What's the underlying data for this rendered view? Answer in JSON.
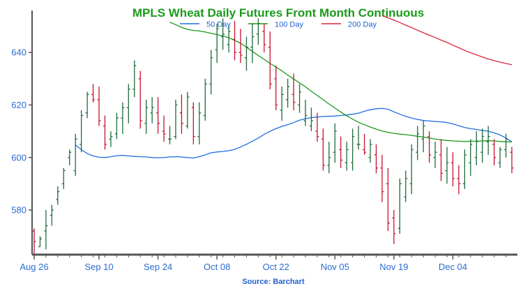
{
  "chart_data": {
    "type": "ohlc",
    "title": "MPLS Wheat Daily Futures Front Month Continuous",
    "source": "Source: Barchart",
    "xlabel": "",
    "ylabel": "",
    "ylim": [
      563,
      656
    ],
    "y_ticks": [
      580,
      600,
      620,
      640
    ],
    "x_ticks": [
      "Aug 26",
      "Sep 10",
      "Sep 24",
      "Oct 08",
      "Oct 22",
      "Nov 05",
      "Nov 19",
      "Dec 04"
    ],
    "x_tick_index": [
      0,
      11,
      21,
      31,
      41,
      51,
      61,
      71
    ],
    "grid": false,
    "legend": {
      "placement": "top-center"
    },
    "colors": {
      "title": "#1a9a1a",
      "axis": "#555555",
      "tick_text": "#2b6cd4",
      "up": "#1e6b3c",
      "down": "#c8102e",
      "ma50": "#1f6fe0",
      "ma100": "#1a9a1a",
      "ma200": "#d9253f",
      "source": "#1f5fd0"
    },
    "series": [
      {
        "name": "50 Day",
        "color": "#1f6fe0",
        "values": [
          604.8,
          603.0,
          601.5,
          600.6,
          600.1,
          600.0,
          600.3,
          600.7,
          600.8,
          600.6,
          600.4,
          600.3,
          600.2,
          600.0,
          599.9,
          600.0,
          600.2,
          600.3,
          600.2,
          600.0,
          599.8,
          600.3,
          601.0,
          601.8,
          602.1,
          602.3,
          602.6,
          603.1,
          604.0,
          605.0,
          606.2,
          607.4,
          608.8,
          610.0,
          611.0,
          611.8,
          612.5,
          613.3,
          614.2,
          614.8,
          615.2,
          615.4,
          615.6,
          615.7,
          615.8,
          616.0,
          616.2,
          616.5,
          616.9,
          617.6,
          618.2,
          618.6,
          618.7,
          618.4,
          617.4,
          616.5,
          615.7,
          615.0,
          614.5,
          614.1,
          613.9,
          613.7,
          613.6,
          613.3,
          612.8,
          612.1,
          611.4,
          611.0,
          610.7,
          610.3,
          610.0,
          609.4,
          608.6,
          607.4,
          606.0
        ]
      },
      {
        "name": "100 Day",
        "color": "#1a9a1a",
        "values": [
          651.5,
          650.6,
          649.6,
          648.8,
          648.4,
          648.2,
          647.8,
          647.3,
          646.8,
          646.3,
          645.6,
          644.6,
          643.5,
          642.0,
          640.4,
          638.8,
          637.4,
          635.8,
          634.5,
          633.0,
          631.4,
          629.9,
          628.4,
          626.9,
          625.2,
          623.6,
          622.0,
          620.4,
          618.8,
          617.3,
          615.9,
          614.6,
          613.4,
          612.5,
          611.6,
          610.8,
          610.1,
          609.6,
          609.2,
          608.9,
          608.7,
          608.4,
          608.1,
          607.8,
          607.4,
          607.0,
          606.7,
          606.5,
          606.3,
          606.2,
          606.1,
          606.2,
          606.2,
          606.3,
          606.4,
          606.3,
          606.1,
          606.0,
          605.9
        ]
      },
      {
        "name": "200 Day",
        "color": "#d9253f",
        "values": [
          654.0,
          653.2,
          652.3,
          651.4,
          650.4,
          649.5,
          648.5,
          647.5,
          646.6,
          645.7,
          644.7,
          643.8,
          642.8,
          641.8,
          640.8,
          639.9,
          639.1,
          638.3,
          637.5,
          636.9,
          636.3,
          635.8,
          635.3
        ]
      }
    ],
    "ohlc": [
      [
        572,
        573,
        563,
        568
      ],
      [
        566,
        570,
        566,
        569
      ],
      [
        572,
        580,
        565,
        574
      ],
      [
        578,
        582,
        574,
        580
      ],
      [
        584,
        589,
        582,
        587
      ],
      [
        590,
        596,
        588,
        595
      ],
      [
        600,
        603,
        597,
        602
      ],
      [
        595,
        609,
        593,
        607
      ],
      [
        605,
        618,
        602,
        616
      ],
      [
        617,
        625,
        615,
        624
      ],
      [
        624,
        628,
        621,
        622
      ],
      [
        622,
        627,
        612,
        614
      ],
      [
        612,
        616,
        603,
        605
      ],
      [
        607,
        610,
        604,
        608
      ],
      [
        609,
        617,
        607,
        615
      ],
      [
        615,
        621,
        609,
        619
      ],
      [
        619,
        628,
        613,
        626
      ],
      [
        626,
        637,
        623,
        635
      ],
      [
        630,
        633,
        611,
        614
      ],
      [
        613,
        622,
        609,
        619
      ],
      [
        617,
        623,
        613,
        619
      ],
      [
        617,
        623,
        609,
        613
      ],
      [
        610,
        616,
        606,
        609
      ],
      [
        607,
        612,
        605,
        607
      ],
      [
        608,
        622,
        607,
        620
      ],
      [
        617,
        624,
        609,
        613
      ],
      [
        612,
        625,
        611,
        623
      ],
      [
        619,
        621,
        605,
        608
      ],
      [
        608,
        621,
        605,
        617
      ],
      [
        616,
        630,
        614,
        628
      ],
      [
        628,
        641,
        624,
        638
      ],
      [
        641,
        651,
        636,
        649
      ],
      [
        646,
        653,
        641,
        647
      ],
      [
        643,
        650,
        640,
        648
      ],
      [
        645,
        652,
        637,
        640
      ],
      [
        640,
        649,
        636,
        639
      ],
      [
        638,
        646,
        633,
        642
      ],
      [
        642,
        651,
        636,
        646
      ],
      [
        647,
        653,
        643,
        651
      ],
      [
        648,
        651,
        640,
        643
      ],
      [
        642,
        648,
        626,
        628
      ],
      [
        630,
        635,
        618,
        620
      ],
      [
        618,
        627,
        614,
        624
      ],
      [
        622,
        630,
        619,
        627
      ],
      [
        624,
        632,
        618,
        621
      ],
      [
        620,
        628,
        617,
        625
      ],
      [
        614,
        622,
        612,
        616
      ],
      [
        612,
        619,
        610,
        614
      ],
      [
        610,
        617,
        606,
        608
      ],
      [
        607,
        611,
        595,
        597
      ],
      [
        597,
        606,
        594,
        600
      ],
      [
        602,
        613,
        598,
        610
      ],
      [
        603,
        608,
        596,
        599
      ],
      [
        598,
        606,
        595,
        603
      ],
      [
        598,
        611,
        595,
        608
      ],
      [
        605,
        612,
        603,
        605
      ],
      [
        603,
        609,
        601,
        602
      ],
      [
        600,
        607,
        598,
        605
      ],
      [
        601,
        605,
        594,
        596
      ],
      [
        596,
        601,
        583,
        587
      ],
      [
        590,
        596,
        572,
        575
      ],
      [
        577,
        580,
        567,
        571
      ],
      [
        573,
        592,
        571,
        590
      ],
      [
        585,
        595,
        583,
        592
      ],
      [
        590,
        605,
        586,
        603
      ],
      [
        602,
        612,
        599,
        609
      ],
      [
        607,
        614,
        602,
        612
      ],
      [
        608,
        610,
        598,
        601
      ],
      [
        600,
        606,
        596,
        602
      ],
      [
        601,
        607,
        591,
        594
      ],
      [
        595,
        604,
        590,
        598
      ],
      [
        598,
        602,
        589,
        592
      ],
      [
        592,
        597,
        586,
        590
      ],
      [
        590,
        603,
        588,
        601
      ],
      [
        598,
        607,
        593,
        605
      ],
      [
        600,
        610,
        597,
        606
      ],
      [
        602,
        611,
        598,
        608
      ],
      [
        606,
        612,
        601,
        608
      ],
      [
        605,
        607,
        597,
        600
      ],
      [
        598,
        604,
        596,
        603
      ],
      [
        603,
        609,
        600,
        607
      ],
      [
        602,
        604,
        594,
        596
      ]
    ]
  }
}
